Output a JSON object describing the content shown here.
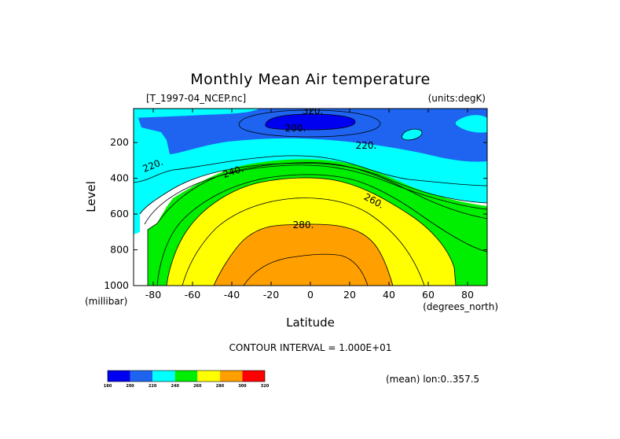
{
  "chart_data": {
    "type": "heatmap",
    "title": "Monthly Mean Air temperature",
    "file_label": "[T_1997-04_NCEP.nc]",
    "units_label": "(units:degK)",
    "xlabel": "Latitude",
    "ylabel": "Level",
    "x_units": "(degrees_north)",
    "y_units": "(millibar)",
    "xlim": [
      -90,
      90
    ],
    "ylim": [
      1000,
      10
    ],
    "x_ticks": [
      -80,
      -60,
      -40,
      -20,
      0,
      20,
      40,
      60,
      80
    ],
    "y_ticks": [
      1000,
      800,
      600,
      400,
      200
    ],
    "contour_interval_text": "CONTOUR INTERVAL = 1.000E+01",
    "mean_text": "(mean) lon:0..357.5",
    "contour_labels": [
      {
        "text": "320.",
        "lat": -2,
        "level": 10
      },
      {
        "text": "200.",
        "lat": -7,
        "level": 80
      },
      {
        "text": "220.",
        "lat": 28,
        "level": 200
      },
      {
        "text": "220.",
        "lat": -79,
        "level": 320
      },
      {
        "text": "240.",
        "lat": -38,
        "level": 350
      },
      {
        "text": "260.",
        "lat": 32,
        "level": 540
      },
      {
        "text": "280.",
        "lat": -3,
        "level": 700
      }
    ],
    "colorbar": {
      "levels": [
        "180",
        "200",
        "220",
        "240",
        "260",
        "280",
        "300",
        "320"
      ],
      "colors": [
        "#0000f0",
        "#1e64f0",
        "#00ffff",
        "#00ee00",
        "#ffff00",
        "#ffa000",
        "#ff0000"
      ]
    },
    "regions": [
      {
        "band": "200-220",
        "color": "#1e64f0"
      },
      {
        "band": "<200",
        "color": "#0000f0"
      },
      {
        "band": "220-240",
        "color": "#00ffff"
      },
      {
        "band": "240-260",
        "color": "#00ee00"
      },
      {
        "band": "260-280",
        "color": "#ffff00"
      },
      {
        "band": "280-300",
        "color": "#ffa000"
      }
    ]
  }
}
